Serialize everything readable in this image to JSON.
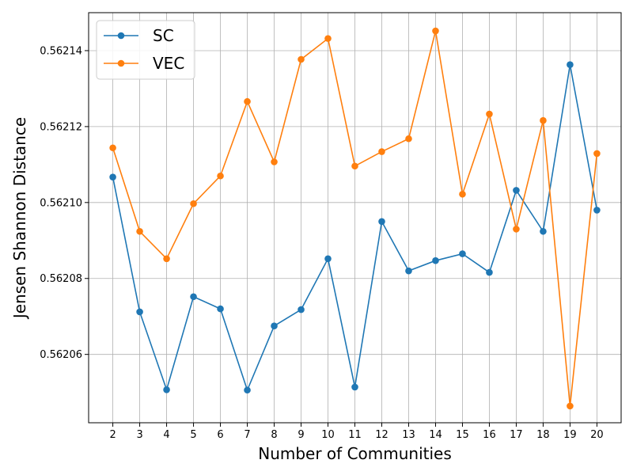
{
  "chart_data": {
    "type": "line",
    "xlabel": "Number of Communities",
    "ylabel": "Jensen Shannon Distance",
    "x": [
      2,
      3,
      4,
      5,
      6,
      7,
      8,
      9,
      10,
      11,
      12,
      13,
      14,
      15,
      16,
      17,
      18,
      19,
      20
    ],
    "xlim": [
      1.1,
      20.9
    ],
    "ylim": [
      0.562042,
      0.56215
    ],
    "yticks": [
      0.56206,
      0.56208,
      0.5621,
      0.56212,
      0.56214
    ],
    "ytick_labels": [
      "0.56206",
      "0.56208",
      "0.56210",
      "0.56212",
      "0.56214"
    ],
    "grid": true,
    "legend_position": "upper-left",
    "series": [
      {
        "name": "SC",
        "color": "#1f77b4",
        "marker": "circle",
        "values": [
          0.5621067,
          0.5620712,
          0.5620507,
          0.5620752,
          0.562072,
          0.5620506,
          0.5620675,
          0.5620718,
          0.5620852,
          0.5620514,
          0.562095,
          0.562082,
          0.5620847,
          0.5620865,
          0.5620816,
          0.5621032,
          0.5620924,
          0.5621363,
          0.562098
        ]
      },
      {
        "name": "VEC",
        "color": "#ff7f0e",
        "marker": "circle",
        "values": [
          0.5621144,
          0.5620924,
          0.5620852,
          0.5620997,
          0.562107,
          0.5621266,
          0.5621107,
          0.5621377,
          0.5621432,
          0.5621096,
          0.5621134,
          0.5621168,
          0.5621452,
          0.5621022,
          0.5621233,
          0.562093,
          0.5621216,
          0.5620464,
          0.5621129
        ]
      }
    ]
  }
}
